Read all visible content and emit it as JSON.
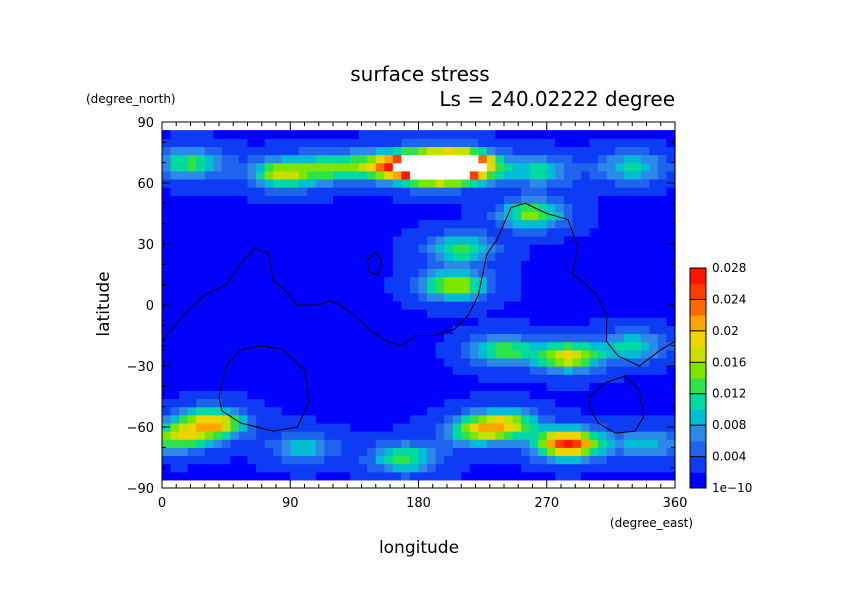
{
  "chart_data": {
    "type": "heatmap",
    "title": "surface stress",
    "subtitle": "Ls = 240.02222 degree",
    "xlabel": "longitude",
    "ylabel": "latitude",
    "x_unit": "(degree_east)",
    "y_unit": "(degree_north)",
    "xlim": [
      0,
      360
    ],
    "ylim": [
      -90,
      90
    ],
    "x_ticks": [
      "0",
      "90",
      "180",
      "270",
      "360"
    ],
    "y_ticks": [
      "90",
      "60",
      "30",
      "0",
      "−30",
      "−60",
      "−90"
    ],
    "colorbar": {
      "range": [
        0,
        0.03
      ],
      "labels": [
        "1e−10",
        "0.004",
        "0.008",
        "0.012",
        "0.016",
        "0.02",
        "0.024",
        "0.028"
      ],
      "colors": [
        "#0000ff",
        "#0e3cf5",
        "#1e64ee",
        "#2b8ae8",
        "#00bcd4",
        "#00d9a0",
        "#2ee34a",
        "#7ce600",
        "#c8e000",
        "#f0d400",
        "#ffa500",
        "#ff6a00",
        "#ff3c00",
        "#ff1400"
      ]
    },
    "background_value": 0.002,
    "hotspots": [
      {
        "lon": 200,
        "lat": 68,
        "value": 0.032
      },
      {
        "lon": 180,
        "lat": 68,
        "value": 0.026
      },
      {
        "lon": 215,
        "lat": 69,
        "value": 0.022
      },
      {
        "lon": 155,
        "lat": 69,
        "value": 0.014
      },
      {
        "lon": 85,
        "lat": 65,
        "value": 0.016
      },
      {
        "lon": 120,
        "lat": 68,
        "value": 0.012
      },
      {
        "lon": 20,
        "lat": 70,
        "value": 0.012
      },
      {
        "lon": 265,
        "lat": 66,
        "value": 0.01
      },
      {
        "lon": 330,
        "lat": 68,
        "value": 0.01
      },
      {
        "lon": 260,
        "lat": 45,
        "value": 0.014
      },
      {
        "lon": 205,
        "lat": 10,
        "value": 0.016
      },
      {
        "lon": 210,
        "lat": 28,
        "value": 0.012
      },
      {
        "lon": 285,
        "lat": -25,
        "value": 0.018
      },
      {
        "lon": 240,
        "lat": -22,
        "value": 0.012
      },
      {
        "lon": 330,
        "lat": -20,
        "value": 0.01
      },
      {
        "lon": 285,
        "lat": -68,
        "value": 0.026
      },
      {
        "lon": 240,
        "lat": -58,
        "value": 0.016
      },
      {
        "lon": 220,
        "lat": -62,
        "value": 0.012
      },
      {
        "lon": 170,
        "lat": -75,
        "value": 0.012
      },
      {
        "lon": 35,
        "lat": -58,
        "value": 0.02
      },
      {
        "lon": 10,
        "lat": -65,
        "value": 0.014
      },
      {
        "lon": 340,
        "lat": -68,
        "value": 0.008
      },
      {
        "lon": 100,
        "lat": -70,
        "value": 0.008
      }
    ],
    "outlines": [
      [
        [
          0,
          -18
        ],
        [
          15,
          -5
        ],
        [
          30,
          5
        ],
        [
          45,
          10
        ],
        [
          55,
          20
        ],
        [
          65,
          28
        ],
        [
          75,
          25
        ],
        [
          78,
          12
        ],
        [
          85,
          8
        ],
        [
          95,
          0
        ],
        [
          110,
          0
        ],
        [
          118,
          2
        ],
        [
          125,
          0
        ],
        [
          135,
          -5
        ],
        [
          145,
          -12
        ],
        [
          158,
          -18
        ],
        [
          168,
          -20
        ],
        [
          178,
          -15
        ],
        [
          190,
          -15
        ],
        [
          205,
          -12
        ],
        [
          215,
          -5
        ],
        [
          222,
          5
        ],
        [
          225,
          15
        ],
        [
          228,
          25
        ],
        [
          235,
          32
        ],
        [
          240,
          40
        ],
        [
          245,
          48
        ],
        [
          255,
          50
        ],
        [
          270,
          45
        ],
        [
          285,
          42
        ],
        [
          292,
          28
        ],
        [
          288,
          15
        ],
        [
          295,
          12
        ],
        [
          305,
          5
        ],
        [
          312,
          -5
        ],
        [
          312,
          -18
        ],
        [
          320,
          -25
        ],
        [
          335,
          -30
        ],
        [
          350,
          -22
        ],
        [
          360,
          -18
        ]
      ],
      [
        [
          144,
          22
        ],
        [
          150,
          26
        ],
        [
          154,
          22
        ],
        [
          152,
          15
        ],
        [
          146,
          16
        ],
        [
          144,
          22
        ]
      ],
      [
        [
          40,
          -45
        ],
        [
          45,
          -30
        ],
        [
          55,
          -22
        ],
        [
          70,
          -20
        ],
        [
          85,
          -22
        ],
        [
          100,
          -32
        ],
        [
          103,
          -48
        ],
        [
          95,
          -60
        ],
        [
          78,
          -62
        ],
        [
          55,
          -58
        ],
        [
          42,
          -52
        ],
        [
          40,
          -45
        ]
      ],
      [
        [
          300,
          -45
        ],
        [
          312,
          -38
        ],
        [
          325,
          -35
        ],
        [
          335,
          -42
        ],
        [
          338,
          -55
        ],
        [
          332,
          -62
        ],
        [
          318,
          -63
        ],
        [
          306,
          -58
        ],
        [
          300,
          -50
        ],
        [
          300,
          -45
        ]
      ]
    ]
  }
}
